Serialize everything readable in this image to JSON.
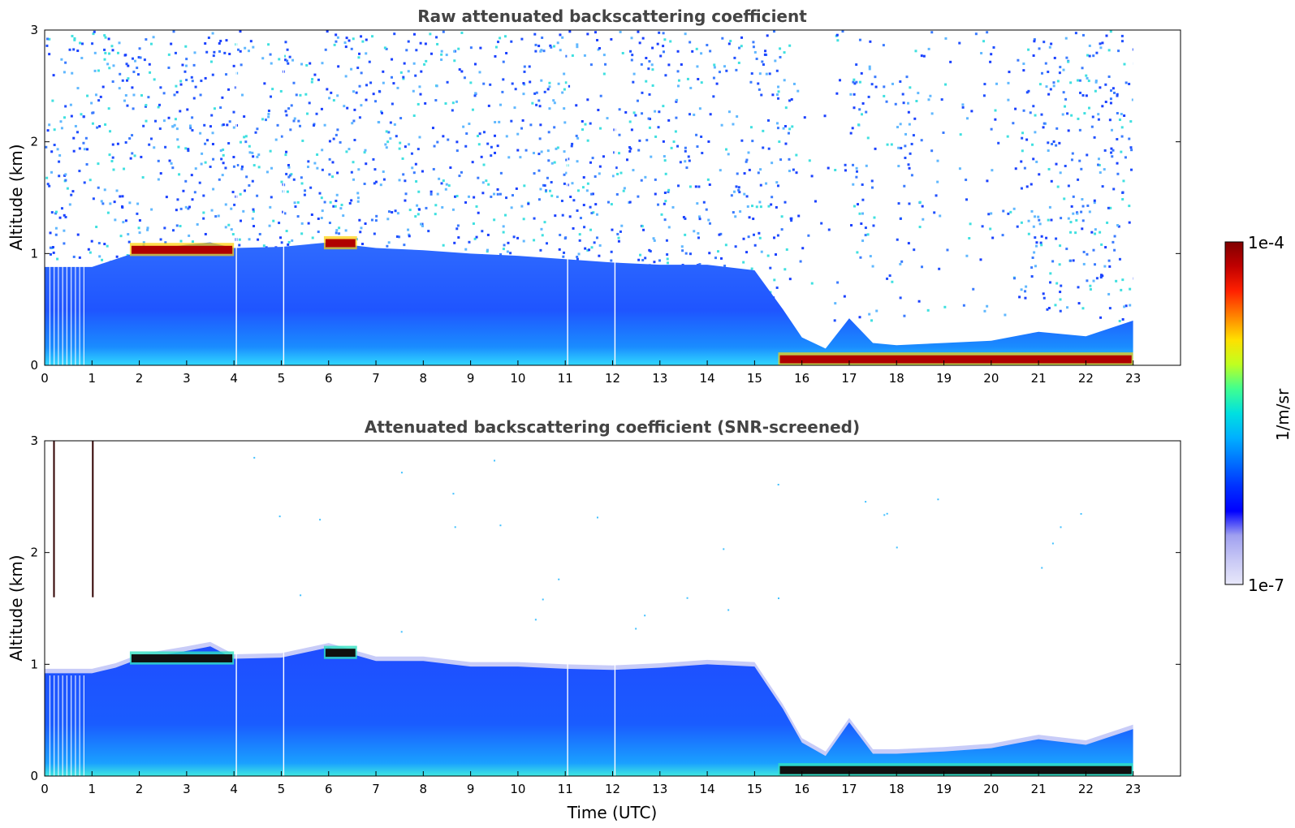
{
  "chart_data": [
    {
      "type": "heatmap",
      "title": "Raw attenuated backscattering coefficient",
      "xlabel": "",
      "ylabel": "Altitude (km)",
      "xlim": [
        0,
        24
      ],
      "ylim": [
        0,
        3
      ],
      "x_ticks": [
        "0",
        "1",
        "2",
        "3",
        "4",
        "5",
        "6",
        "7",
        "8",
        "9",
        "10",
        "11",
        "12",
        "13",
        "14",
        "15",
        "16",
        "17",
        "18",
        "19",
        "20",
        "21",
        "22",
        "23"
      ],
      "y_ticks": [
        "0",
        "1",
        "2",
        "3"
      ],
      "data_end_hour": 23,
      "boundary_layer_top_km": [
        {
          "x": 0,
          "y": 0.88
        },
        {
          "x": 1,
          "y": 0.88
        },
        {
          "x": 1.5,
          "y": 0.95
        },
        {
          "x": 2,
          "y": 1.02
        },
        {
          "x": 3,
          "y": 1.08
        },
        {
          "x": 3.5,
          "y": 1.1
        },
        {
          "x": 4,
          "y": 1.05
        },
        {
          "x": 5,
          "y": 1.06
        },
        {
          "x": 6,
          "y": 1.1
        },
        {
          "x": 7,
          "y": 1.05
        },
        {
          "x": 8,
          "y": 1.03
        },
        {
          "x": 9,
          "y": 1.0
        },
        {
          "x": 10,
          "y": 0.98
        },
        {
          "x": 11,
          "y": 0.95
        },
        {
          "x": 12,
          "y": 0.92
        },
        {
          "x": 13,
          "y": 0.9
        },
        {
          "x": 14,
          "y": 0.9
        },
        {
          "x": 15,
          "y": 0.85
        },
        {
          "x": 15.6,
          "y": 0.5
        },
        {
          "x": 16,
          "y": 0.25
        },
        {
          "x": 16.5,
          "y": 0.15
        },
        {
          "x": 17,
          "y": 0.42
        },
        {
          "x": 17.5,
          "y": 0.2
        },
        {
          "x": 18,
          "y": 0.18
        },
        {
          "x": 19,
          "y": 0.2
        },
        {
          "x": 20,
          "y": 0.22
        },
        {
          "x": 21,
          "y": 0.3
        },
        {
          "x": 22,
          "y": 0.26
        },
        {
          "x": 23,
          "y": 0.4
        }
      ],
      "strong_layers": [
        {
          "x_start": 1.8,
          "x_end": 4.0,
          "altitude_km": 1.03,
          "level": "1e-4"
        },
        {
          "x_start": 5.9,
          "x_end": 6.6,
          "altitude_km": 1.09,
          "level": "1e-4"
        },
        {
          "x_start": 15.5,
          "x_end": 23.0,
          "altitude_km": 0.05,
          "level": "1e-4"
        }
      ],
      "vertical_white_gaps_hour": [
        4.05,
        5.05,
        11.05,
        12.05
      ]
    },
    {
      "type": "heatmap",
      "title": "Attenuated backscattering coefficient (SNR-screened)",
      "xlabel": "Time (UTC)",
      "ylabel": "Altitude (km)",
      "xlim": [
        0,
        24
      ],
      "ylim": [
        0,
        3
      ],
      "x_ticks": [
        "0",
        "1",
        "2",
        "3",
        "4",
        "5",
        "6",
        "7",
        "8",
        "9",
        "10",
        "11",
        "12",
        "13",
        "14",
        "15",
        "16",
        "17",
        "18",
        "19",
        "20",
        "21",
        "22",
        "23"
      ],
      "y_ticks": [
        "0",
        "1",
        "2",
        "3"
      ],
      "data_end_hour": 23,
      "boundary_layer_top_km": [
        {
          "x": 0,
          "y": 0.92
        },
        {
          "x": 1,
          "y": 0.92
        },
        {
          "x": 1.5,
          "y": 0.97
        },
        {
          "x": 2,
          "y": 1.05
        },
        {
          "x": 3,
          "y": 1.12
        },
        {
          "x": 3.5,
          "y": 1.16
        },
        {
          "x": 4,
          "y": 1.05
        },
        {
          "x": 5,
          "y": 1.06
        },
        {
          "x": 6,
          "y": 1.15
        },
        {
          "x": 7,
          "y": 1.03
        },
        {
          "x": 8,
          "y": 1.03
        },
        {
          "x": 9,
          "y": 0.98
        },
        {
          "x": 10,
          "y": 0.98
        },
        {
          "x": 11,
          "y": 0.96
        },
        {
          "x": 12,
          "y": 0.95
        },
        {
          "x": 13,
          "y": 0.97
        },
        {
          "x": 14,
          "y": 1.0
        },
        {
          "x": 15,
          "y": 0.98
        },
        {
          "x": 15.6,
          "y": 0.6
        },
        {
          "x": 16,
          "y": 0.3
        },
        {
          "x": 16.5,
          "y": 0.18
        },
        {
          "x": 17,
          "y": 0.48
        },
        {
          "x": 17.5,
          "y": 0.2
        },
        {
          "x": 18,
          "y": 0.2
        },
        {
          "x": 19,
          "y": 0.22
        },
        {
          "x": 20,
          "y": 0.25
        },
        {
          "x": 21,
          "y": 0.33
        },
        {
          "x": 22,
          "y": 0.28
        },
        {
          "x": 23,
          "y": 0.42
        }
      ],
      "saturated_layers": [
        {
          "x_start": 1.8,
          "x_end": 4.0,
          "altitude_km": 1.05
        },
        {
          "x_start": 5.9,
          "x_end": 6.6,
          "altitude_km": 1.1
        },
        {
          "x_start": 15.5,
          "x_end": 23.0,
          "altitude_km": 0.05
        }
      ],
      "vertical_white_gaps_hour": [
        4.05,
        5.05,
        11.05,
        12.05
      ]
    }
  ],
  "colorbar": {
    "label": "1/m/sr",
    "max_label": "1e-4",
    "min_label": "1e-7",
    "colors": [
      "#e8e8fa",
      "#c8c8f5",
      "#a0a0f0",
      "#0000ff",
      "#0030ff",
      "#0070ff",
      "#00b0ff",
      "#00e0e0",
      "#40ff90",
      "#c0ff20",
      "#ffe000",
      "#ff8000",
      "#ff2000",
      "#c00000",
      "#800000"
    ]
  }
}
